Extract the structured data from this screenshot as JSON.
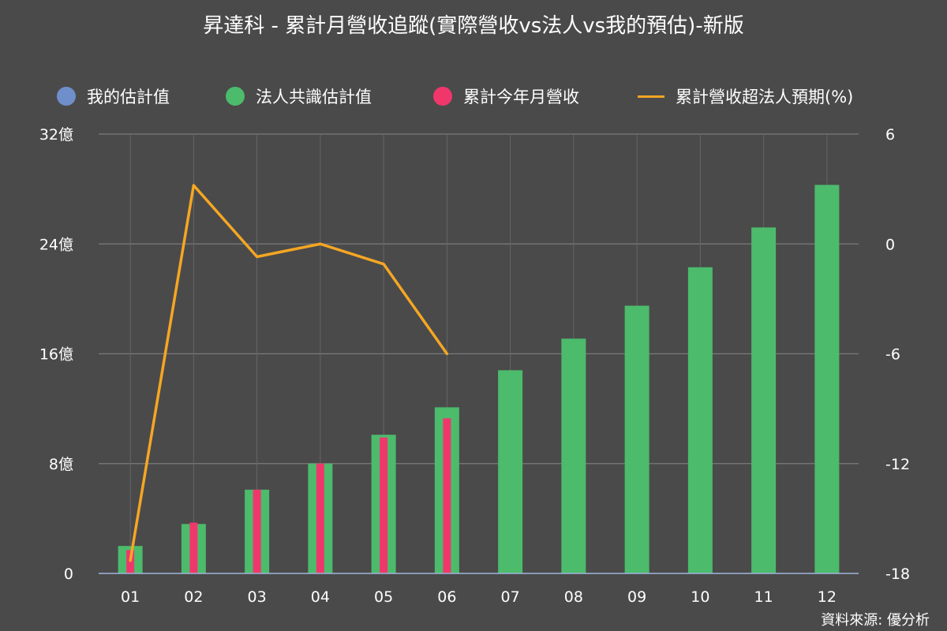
{
  "chart_data": {
    "type": "bar",
    "title": "昇達科 - 累計月營收追蹤(實際營收vs法人vs我的預估)-新版",
    "categories": [
      "01",
      "02",
      "03",
      "04",
      "05",
      "06",
      "07",
      "08",
      "09",
      "10",
      "11",
      "12"
    ],
    "left_axis": {
      "ylim": [
        0,
        32
      ],
      "ticks": [
        0,
        8,
        16,
        24,
        32
      ],
      "tick_labels": [
        "0",
        "8億",
        "16億",
        "24億",
        "32億"
      ]
    },
    "right_axis": {
      "ylim": [
        -18,
        6
      ],
      "ticks": [
        -18,
        -12,
        -6,
        0,
        6
      ],
      "tick_labels": [
        "-18",
        "-12",
        "-6",
        "0",
        "6"
      ]
    },
    "series": [
      {
        "name": "我的估計值",
        "kind": "bar",
        "axis": "left",
        "color": "#6f8fcb",
        "values": [
          null,
          null,
          null,
          null,
          null,
          null,
          null,
          null,
          null,
          null,
          null,
          null
        ]
      },
      {
        "name": "法人共識估計值",
        "kind": "bar",
        "axis": "left",
        "color": "#4cbb6c",
        "values": [
          2.0,
          3.6,
          6.1,
          8.0,
          10.1,
          12.1,
          14.8,
          17.1,
          19.5,
          22.3,
          25.2,
          28.3
        ]
      },
      {
        "name": "累計今年月營收",
        "kind": "bar",
        "axis": "left",
        "color": "#f0376c",
        "values": [
          1.7,
          3.7,
          6.1,
          8.0,
          9.9,
          11.3,
          null,
          null,
          null,
          null,
          null,
          null
        ]
      },
      {
        "name": "累計營收超法人預期(%)",
        "kind": "line",
        "axis": "right",
        "color": "#f5a623",
        "values": [
          -17.3,
          3.2,
          -0.7,
          0.0,
          -1.1,
          -6.0,
          null,
          null,
          null,
          null,
          null,
          null
        ]
      }
    ],
    "grid": true,
    "legend_position": "top"
  },
  "footer": {
    "source": "資料來源: 優分析"
  }
}
